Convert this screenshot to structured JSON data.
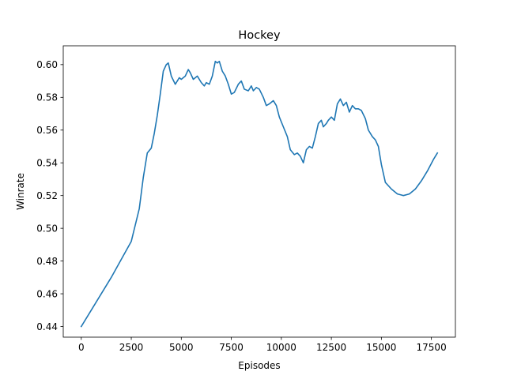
{
  "chart_data": {
    "type": "line",
    "title": "Hockey",
    "xlabel": "Episodes",
    "ylabel": "Winrate",
    "xlim": [
      -900,
      18700
    ],
    "ylim": [
      0.4335,
      0.6115
    ],
    "grid": false,
    "xticks": [
      0,
      2500,
      5000,
      7500,
      10000,
      12500,
      15000,
      17500
    ],
    "xtick_labels": [
      "0",
      "2500",
      "5000",
      "7500",
      "10000",
      "12500",
      "15000",
      "17500"
    ],
    "yticks": [
      0.44,
      0.46,
      0.48,
      0.5,
      0.52,
      0.54,
      0.56,
      0.58,
      0.6
    ],
    "ytick_labels": [
      "0.44",
      "0.46",
      "0.48",
      "0.50",
      "0.52",
      "0.54",
      "0.56",
      "0.58",
      "0.60"
    ],
    "series": [
      {
        "color": "#1f77b4",
        "x": [
          0,
          500,
          1000,
          1500,
          2000,
          2500,
          2640,
          2760,
          2900,
          3100,
          3300,
          3500,
          3650,
          3800,
          3950,
          4100,
          4250,
          4350,
          4500,
          4700,
          4900,
          5000,
          5100,
          5200,
          5350,
          5450,
          5600,
          5800,
          6000,
          6150,
          6250,
          6400,
          6550,
          6700,
          6800,
          6900,
          7050,
          7200,
          7350,
          7500,
          7650,
          7850,
          8000,
          8150,
          8350,
          8500,
          8600,
          8750,
          8900,
          9100,
          9250,
          9400,
          9600,
          9750,
          9900,
          10100,
          10300,
          10450,
          10650,
          10800,
          10950,
          11100,
          11250,
          11400,
          11550,
          11700,
          11850,
          12000,
          12100,
          12250,
          12350,
          12500,
          12650,
          12800,
          12950,
          13100,
          13250,
          13400,
          13550,
          13700,
          13850,
          14000,
          14200,
          14350,
          14550,
          14700,
          14850,
          15000,
          15200,
          15500,
          15800,
          16100,
          16400,
          16700,
          17000,
          17300,
          17600,
          17800
        ],
        "values": [
          0.44,
          0.45,
          0.46,
          0.47,
          0.481,
          0.492,
          0.499,
          0.505,
          0.512,
          0.531,
          0.546,
          0.549,
          0.558,
          0.569,
          0.582,
          0.596,
          0.6,
          0.601,
          0.593,
          0.588,
          0.592,
          0.591,
          0.592,
          0.593,
          0.597,
          0.595,
          0.591,
          0.593,
          0.589,
          0.587,
          0.589,
          0.588,
          0.593,
          0.602,
          0.601,
          0.602,
          0.596,
          0.593,
          0.588,
          0.582,
          0.583,
          0.588,
          0.59,
          0.585,
          0.584,
          0.587,
          0.584,
          0.586,
          0.585,
          0.58,
          0.575,
          0.576,
          0.578,
          0.575,
          0.568,
          0.562,
          0.556,
          0.548,
          0.545,
          0.546,
          0.544,
          0.54,
          0.548,
          0.55,
          0.549,
          0.556,
          0.564,
          0.566,
          0.562,
          0.564,
          0.566,
          0.568,
          0.566,
          0.576,
          0.579,
          0.575,
          0.577,
          0.571,
          0.575,
          0.573,
          0.573,
          0.572,
          0.567,
          0.56,
          0.556,
          0.554,
          0.55,
          0.539,
          0.528,
          0.524,
          0.521,
          0.52,
          0.521,
          0.524,
          0.529,
          0.535,
          0.542,
          0.546
        ]
      }
    ]
  }
}
